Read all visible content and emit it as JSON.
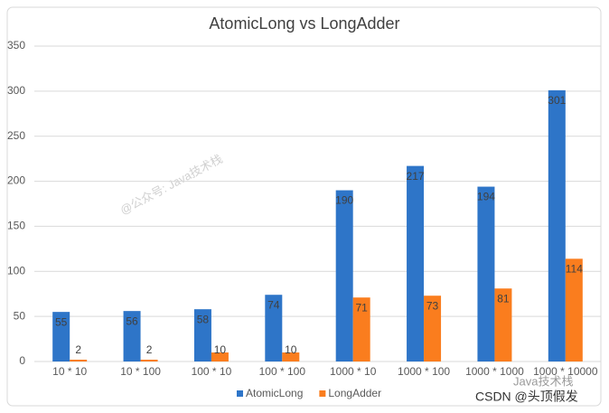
{
  "chart_data": {
    "type": "bar",
    "title": "AtomicLong vs LongAdder",
    "categories": [
      "10 * 10",
      "10 * 100",
      "100 * 10",
      "100 * 100",
      "1000 * 10",
      "1000 * 100",
      "1000 * 1000",
      "1000 * 10000"
    ],
    "series": [
      {
        "name": "AtomicLong",
        "color": "#2e75c8",
        "values": [
          55,
          56,
          58,
          74,
          190,
          217,
          194,
          301
        ]
      },
      {
        "name": "LongAdder",
        "color": "#fa7d1e",
        "values": [
          2,
          2,
          10,
          10,
          71,
          73,
          81,
          114
        ]
      }
    ],
    "ylim": [
      0,
      350
    ],
    "yticks": [
      0,
      50,
      100,
      150,
      200,
      250,
      300,
      350
    ],
    "grid": true,
    "legend": "bottom",
    "watermarks": [
      "@公众号: Java技术栈",
      "Java技术栈",
      "CSDN @头顶假发"
    ]
  }
}
